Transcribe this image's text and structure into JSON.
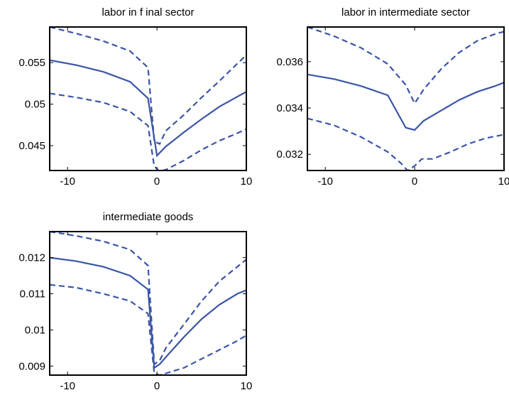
{
  "chart_data": [
    {
      "type": "line",
      "title": "labor in f inal sector",
      "xlim": [
        -12,
        10
      ],
      "ylim": [
        0.042,
        0.0593
      ],
      "xticks": [
        -10,
        0,
        10
      ],
      "xtick_labels": [
        "-10",
        "0",
        "10"
      ],
      "yticks": [
        0.045,
        0.05,
        0.055
      ],
      "ytick_labels": [
        "0.045",
        "0.05",
        "0.055"
      ],
      "series": [
        {
          "style": "solid",
          "x": [
            -12,
            -9,
            -6,
            -3,
            -1,
            0,
            1,
            3,
            5,
            7,
            9,
            10
          ],
          "y": [
            0.0553,
            0.0547,
            0.0539,
            0.0527,
            0.0507,
            0.0438,
            0.0449,
            0.0466,
            0.0482,
            0.0497,
            0.0509,
            0.0515
          ]
        },
        {
          "style": "dashed",
          "x": [
            -12,
            -9,
            -6,
            -3,
            -1,
            -0.3,
            0.3,
            1,
            3,
            5,
            7,
            9,
            10
          ],
          "y": [
            0.0593,
            0.0585,
            0.0576,
            0.0564,
            0.0544,
            0.0455,
            0.0452,
            0.0468,
            0.0487,
            0.0508,
            0.0528,
            0.0549,
            0.0559
          ]
        },
        {
          "style": "dashed",
          "x": [
            -12,
            -9,
            -6,
            -3,
            -1,
            -0.3,
            0.3,
            1,
            3,
            5,
            7,
            9,
            10
          ],
          "y": [
            0.0513,
            0.0508,
            0.0502,
            0.0491,
            0.0474,
            0.0425,
            0.0419,
            0.0421,
            0.0432,
            0.0445,
            0.0456,
            0.0465,
            0.047
          ]
        }
      ]
    },
    {
      "type": "line",
      "title": "labor in intermediate sector",
      "xlim": [
        -12,
        10
      ],
      "ylim": [
        0.0313,
        0.0375
      ],
      "xticks": [
        -10,
        0,
        10
      ],
      "xtick_labels": [
        "-10",
        "0",
        "10"
      ],
      "yticks": [
        0.032,
        0.034,
        0.036
      ],
      "ytick_labels": [
        "0.032",
        "0.034",
        "0.036"
      ],
      "series": [
        {
          "style": "solid",
          "x": [
            -12,
            -9,
            -6,
            -3,
            -1,
            0,
            1,
            3,
            5,
            7,
            9,
            10
          ],
          "y": [
            0.03545,
            0.03525,
            0.03495,
            0.03455,
            0.03315,
            0.03305,
            0.03345,
            0.0339,
            0.03435,
            0.0347,
            0.03495,
            0.0351
          ]
        },
        {
          "style": "dashed",
          "x": [
            -12,
            -9,
            -6,
            -3,
            -1,
            0,
            1,
            3,
            5,
            7,
            9,
            10
          ],
          "y": [
            0.0375,
            0.0371,
            0.0366,
            0.0359,
            0.035,
            0.0342,
            0.0348,
            0.0357,
            0.0364,
            0.0369,
            0.0372,
            0.0373
          ]
        },
        {
          "style": "dashed",
          "x": [
            -12,
            -9,
            -6,
            -3,
            -1.5,
            -0.8,
            0,
            0.8,
            2,
            4,
            6,
            8,
            10
          ],
          "y": [
            0.03355,
            0.03325,
            0.03275,
            0.0321,
            0.0316,
            0.0313,
            0.0315,
            0.0318,
            0.0318,
            0.0321,
            0.03245,
            0.0327,
            0.03285
          ]
        }
      ]
    },
    {
      "type": "line",
      "title": "intermediate goods",
      "xlim": [
        -12,
        10
      ],
      "ylim": [
        0.00875,
        0.01272
      ],
      "xticks": [
        -10,
        0,
        10
      ],
      "xtick_labels": [
        "-10",
        "0",
        "10"
      ],
      "yticks": [
        0.009,
        0.01,
        0.011,
        0.012
      ],
      "ytick_labels": [
        "0.009",
        "0.01",
        "0.011",
        "0.012"
      ],
      "series": [
        {
          "style": "solid",
          "x": [
            -12,
            -9,
            -6,
            -3,
            -1,
            -0.3,
            0.3,
            1,
            3,
            5,
            7,
            9,
            10
          ],
          "y": [
            0.012,
            0.0119,
            0.01175,
            0.0115,
            0.01112,
            0.00895,
            0.00905,
            0.00925,
            0.0098,
            0.0103,
            0.0107,
            0.011,
            0.0111
          ]
        },
        {
          "style": "dashed",
          "x": [
            -12,
            -9,
            -6,
            -3,
            -1,
            -0.3,
            0.3,
            1,
            3,
            5,
            7,
            9,
            10
          ],
          "y": [
            0.01272,
            0.0126,
            0.01245,
            0.01222,
            0.01178,
            0.00905,
            0.00915,
            0.0095,
            0.01015,
            0.0108,
            0.01135,
            0.01175,
            0.01195
          ]
        },
        {
          "style": "dashed",
          "x": [
            -12,
            -9,
            -6,
            -3,
            -1,
            -0.3,
            0.3,
            1,
            3,
            5,
            7,
            9,
            10
          ],
          "y": [
            0.01125,
            0.01117,
            0.011,
            0.0108,
            0.01045,
            0.0088,
            0.00875,
            0.0088,
            0.00895,
            0.0092,
            0.00945,
            0.0097,
            0.00985
          ]
        }
      ]
    }
  ]
}
